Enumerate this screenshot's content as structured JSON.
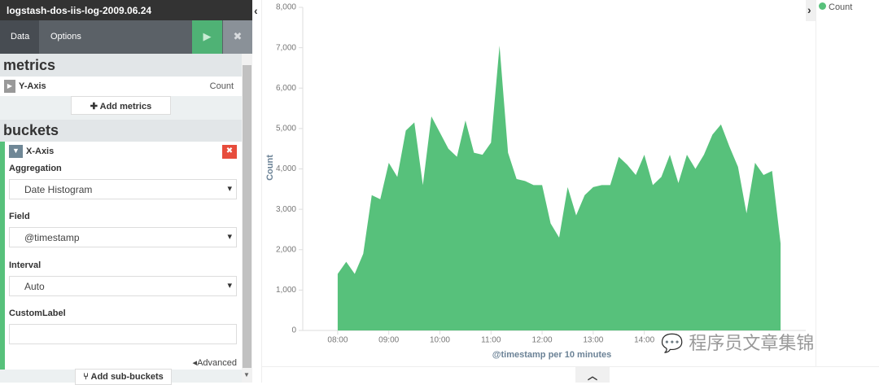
{
  "header": {
    "title": "logstash-dos-iis-log-2009.06.24"
  },
  "tabs": [
    "Data",
    "Options"
  ],
  "metrics": {
    "title": "metrics",
    "y_axis": "Y-Axis",
    "y_axis_value": "Count",
    "add": "Add metrics"
  },
  "buckets": {
    "title": "buckets",
    "x_axis": "X-Axis",
    "fields": [
      {
        "label": "Aggregation",
        "value": "Date Histogram"
      },
      {
        "label": "Field",
        "value": "@timestamp"
      },
      {
        "label": "Interval",
        "value": "Auto"
      },
      {
        "label": "CustomLabel"
      }
    ],
    "advanced": "Advanced",
    "add_sub": "Add sub-buckets"
  },
  "watermark": "程序员文章集锦",
  "chart_data": {
    "type": "area",
    "x_label": "@timestamp per 10 minutes",
    "y_label": "Count",
    "x": [
      "08:00",
      "08:10",
      "08:20",
      "08:30",
      "08:40",
      "08:50",
      "09:00",
      "09:10",
      "09:20",
      "09:30",
      "09:40",
      "09:50",
      "10:00",
      "10:10",
      "10:20",
      "10:30",
      "10:40",
      "10:50",
      "11:00",
      "11:10",
      "11:20",
      "11:30",
      "11:40",
      "11:50",
      "12:00",
      "12:10",
      "12:20",
      "12:30",
      "12:40",
      "12:50",
      "13:00",
      "13:10",
      "13:20",
      "13:30",
      "13:40",
      "13:50",
      "14:00",
      "14:10",
      "14:20",
      "14:30",
      "14:40",
      "14:50",
      "15:00",
      "15:10",
      "15:20",
      "15:30",
      "15:40",
      "15:50",
      "16:00",
      "16:10",
      "16:20",
      "16:30",
      "16:40"
    ],
    "series": [
      {
        "name": "Count",
        "color": "#57c17b",
        "values": [
          1400,
          1700,
          1400,
          1900,
          3350,
          3250,
          4150,
          3800,
          4950,
          5150,
          3600,
          5300,
          4900,
          4500,
          4300,
          5200,
          4400,
          4350,
          4650,
          7050,
          4400,
          3750,
          3700,
          3600,
          3600,
          2650,
          2300,
          3550,
          2850,
          3350,
          3550,
          3600,
          3600,
          4300,
          4100,
          3850,
          4350,
          3600,
          3800,
          4350,
          3650,
          4350,
          4000,
          4350,
          4850,
          5100,
          4550,
          4050,
          2900,
          4150,
          3850,
          3950,
          2150
        ]
      }
    ],
    "xlim": [
      "07:19",
      "17:21"
    ],
    "xticks": [
      "08:00",
      "09:00",
      "10:00",
      "11:00",
      "12:00",
      "13:00",
      "14:00"
    ],
    "ylim": [
      0,
      8000
    ],
    "yticks": [
      0,
      {
        "value": 1000,
        "label": "1,000"
      },
      {
        "value": 2000,
        "label": "2,000"
      },
      {
        "value": 3000,
        "label": "3,000"
      },
      {
        "value": 4000,
        "label": "4,000"
      },
      {
        "value": 5000,
        "label": "5,000"
      },
      {
        "value": 6000,
        "label": "6,000"
      },
      {
        "value": 7000,
        "label": "7,000"
      },
      {
        "value": 8000,
        "label": "8,000"
      }
    ],
    "legend": "top-right"
  }
}
